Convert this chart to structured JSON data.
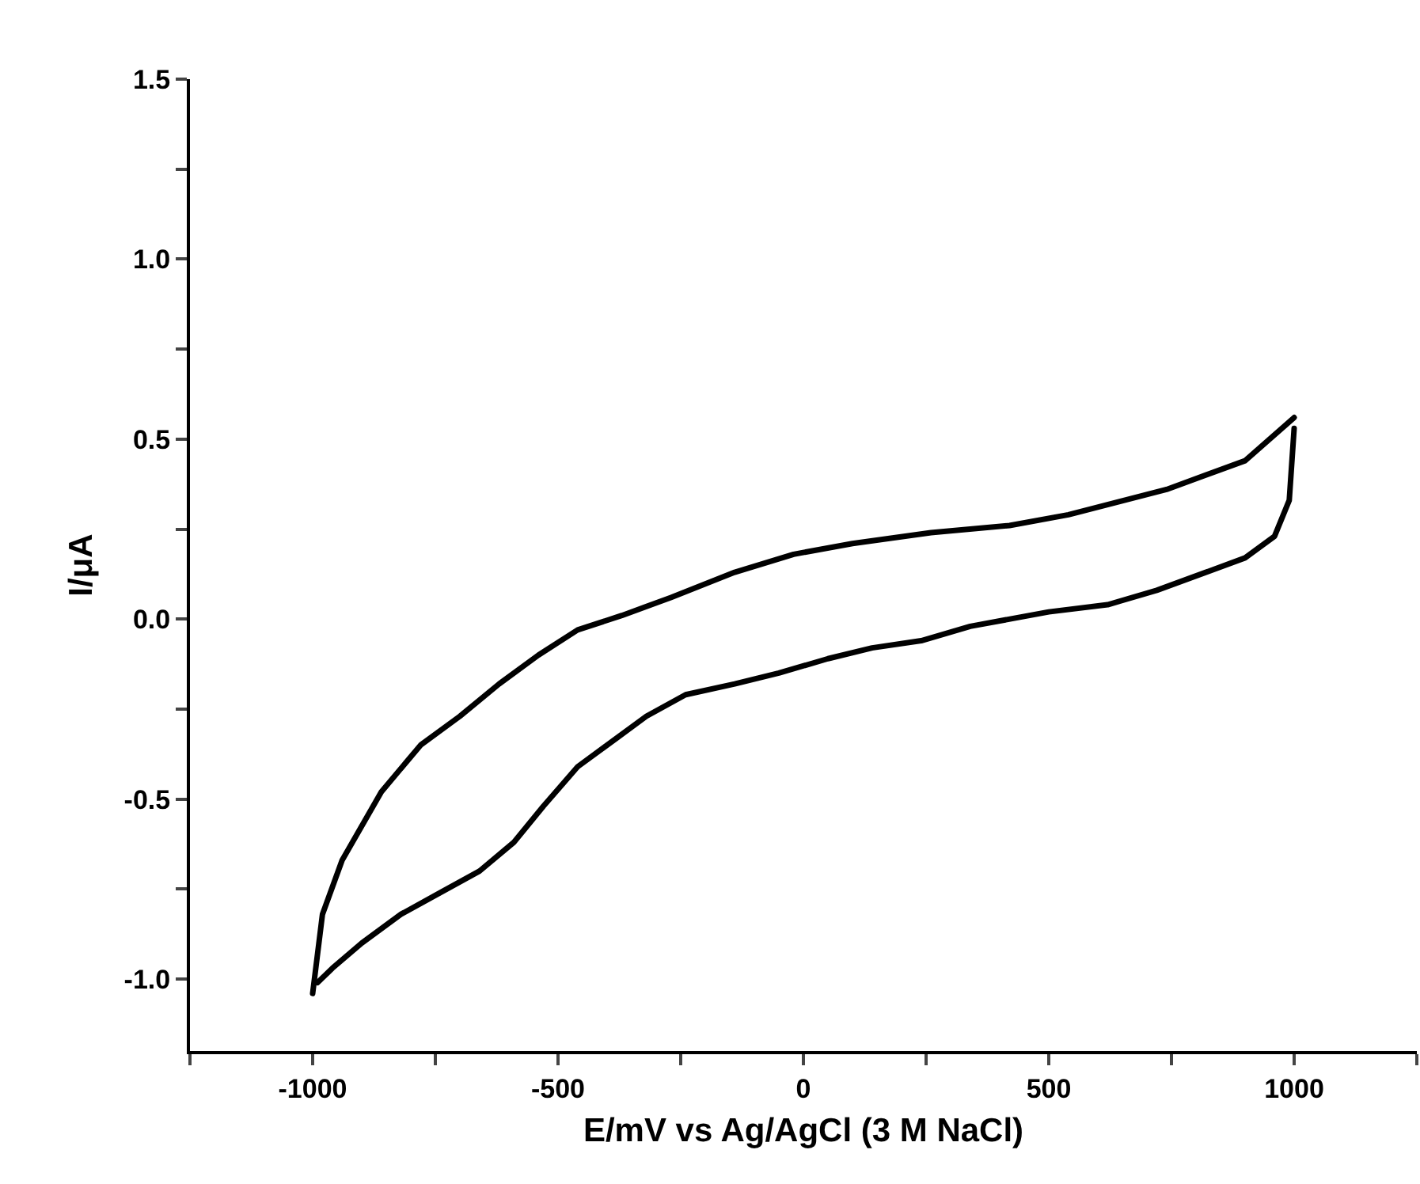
{
  "chart_data": {
    "type": "line",
    "xlabel": "E/mV vs Ag/AgCl (3 M NaCl)",
    "ylabel": "I/μA",
    "xlim": [
      -1250,
      1250
    ],
    "ylim": [
      -1.2,
      1.5
    ],
    "xticks": [
      {
        "value": -1250,
        "label": null
      },
      -1000,
      {
        "value": -750,
        "label": null
      },
      -500,
      {
        "value": -250,
        "label": null
      },
      0,
      {
        "value": 250,
        "label": null
      },
      500,
      {
        "value": 750,
        "label": null
      },
      1000,
      {
        "value": 1250,
        "label": null
      }
    ],
    "yticks": [
      {
        "value": -1,
        "label": "-1.0"
      },
      {
        "value": -0.75,
        "label": null
      },
      -0.5,
      {
        "value": -0.25,
        "label": null
      },
      {
        "value": 0,
        "label": "0.0"
      },
      {
        "value": 0.25,
        "label": null
      },
      0.5,
      {
        "value": 0.75,
        "label": null
      },
      {
        "value": 1,
        "label": "1.0"
      },
      {
        "value": 1.25,
        "label": null
      },
      1.5
    ],
    "grid": false,
    "marker": "none",
    "line_style": "solid",
    "series": [
      {
        "color": "#000000",
        "x": [
          -1000,
          -980,
          -940,
          -860,
          -780,
          -700,
          -620,
          -540,
          -460,
          -370,
          -270,
          -140,
          -20,
          100,
          260,
          420,
          540,
          740,
          900,
          1000
        ],
        "values": [
          -1.04,
          -0.82,
          -0.67,
          -0.48,
          -0.35,
          -0.27,
          -0.18,
          -0.1,
          -0.03,
          0.01,
          0.06,
          0.13,
          0.18,
          0.21,
          0.24,
          0.26,
          0.29,
          0.36,
          0.44,
          0.56
        ]
      },
      {
        "color": "#000000",
        "x": [
          1000,
          990,
          960,
          900,
          820,
          720,
          620,
          500,
          340,
          240,
          140,
          50,
          -50,
          -140,
          -240,
          -320,
          -380,
          -460,
          -530,
          -590,
          -660,
          -740,
          -820,
          -900,
          -960,
          -990
        ],
        "values": [
          0.53,
          0.33,
          0.23,
          0.17,
          0.13,
          0.08,
          0.04,
          0.02,
          -0.02,
          -0.06,
          -0.08,
          -0.11,
          -0.15,
          -0.18,
          -0.21,
          -0.27,
          -0.33,
          -0.41,
          -0.52,
          -0.62,
          -0.7,
          -0.76,
          -0.82,
          -0.9,
          -0.97,
          -1.01
        ]
      }
    ]
  }
}
